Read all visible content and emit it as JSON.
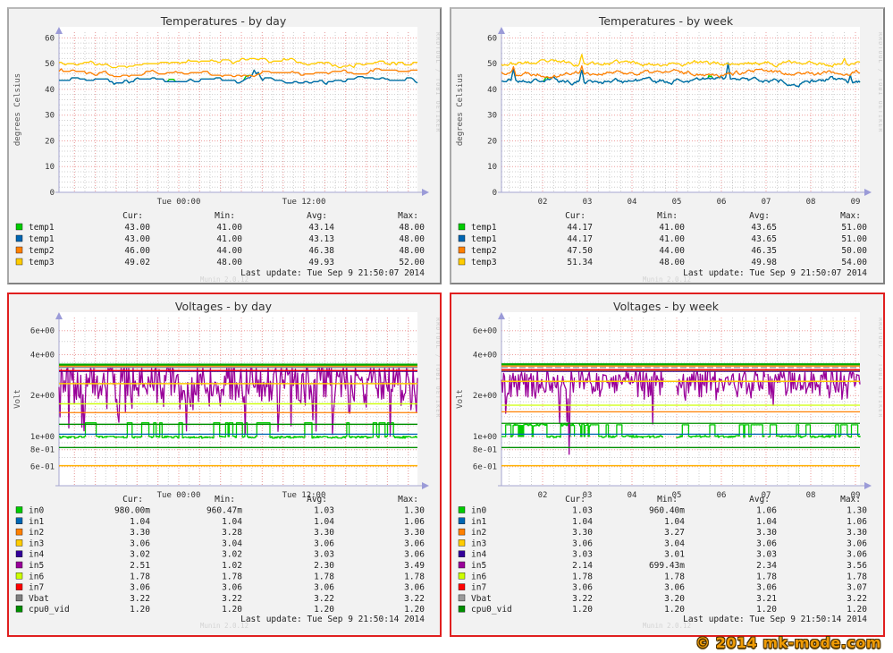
{
  "page": {
    "copyright": "© 2014 mk-mode.com"
  },
  "watermarks": {
    "rrdtool": "RRDTOOL / TOBI OETIKER",
    "munin": "Munin 2.0.12"
  },
  "legend_headers": [
    "Cur:",
    "Min:",
    "Avg:",
    "Max:"
  ],
  "colors": {
    "green": "#00CC00",
    "blue": "#0066B3",
    "orange": "#FF8000",
    "yellow": "#FFCC00",
    "indigo": "#330099",
    "purple": "#990099",
    "chartreuse": "#CCFF00",
    "red": "#FF0000",
    "gray": "#808080",
    "darkgreen": "#008F00",
    "panel_red_border": "#e01f1f"
  },
  "panels": [
    {
      "kind": "temp",
      "title": "Temperatures - by day",
      "ylabel": "degrees Celsius",
      "last_update": "Last update: Tue Sep  9 21:50:07 2014",
      "x_ticks": [
        {
          "label": "Tue 00:00",
          "x": 190
        },
        {
          "label": "Tue 12:00",
          "x": 330
        }
      ],
      "grid": {
        "style": "day"
      },
      "y_ticks": [
        {
          "label": "0",
          "v": 0
        },
        {
          "label": "10",
          "v": 10
        },
        {
          "label": "20",
          "v": 20
        },
        {
          "label": "30",
          "v": 30
        },
        {
          "label": "40",
          "v": 40
        },
        {
          "label": "50",
          "v": 50
        },
        {
          "label": "60",
          "v": 60
        }
      ],
      "chart_data": {
        "type": "line",
        "yscale": "linear",
        "ylim": [
          0,
          60
        ],
        "grid": true,
        "series": [
          {
            "name": "temp1",
            "color": "#00CC00",
            "cur": "43.00",
            "min": "41.00",
            "avg": "43.14",
            "max": "48.00",
            "render": {
              "type": "step",
              "seed": 11,
              "base": 43.6,
              "min": 41,
              "max": 48,
              "cp": 0.3,
              "n": 170,
              "spikes": [
                {
                  "f": 0.545,
                  "v": 47.5
                },
                {
                  "f": 0.558,
                  "v": 46.6
                }
              ],
              "peeks": [
                0.31,
                0.52
              ]
            }
          },
          {
            "name": "temp1",
            "color": "#0066B3",
            "cur": "43.00",
            "min": "41.00",
            "avg": "43.13",
            "max": "48.00",
            "render": {
              "type": "step",
              "seed": 11,
              "base": 43.6,
              "min": 41,
              "max": 48,
              "cp": 0.3,
              "n": 170,
              "spikes": [
                {
                  "f": 0.545,
                  "v": 47.5
                },
                {
                  "f": 0.558,
                  "v": 46.6
                }
              ]
            }
          },
          {
            "name": "temp2",
            "color": "#FF8000",
            "cur": "46.00",
            "min": "44.00",
            "avg": "46.38",
            "max": "48.00",
            "render": {
              "type": "step",
              "seed": 12,
              "base": 46.9,
              "min": 44.5,
              "max": 48,
              "cp": 0.27,
              "n": 170,
              "spikes": [
                {
                  "f": 0.545,
                  "v": 45.0
                }
              ]
            }
          },
          {
            "name": "temp3",
            "color": "#FFCC00",
            "cur": "49.02",
            "min": "48.00",
            "avg": "49.93",
            "max": "52.00",
            "render": {
              "type": "step",
              "seed": 13,
              "base": 50.6,
              "min": 48.5,
              "max": 52,
              "cp": 0.3,
              "n": 170,
              "spikes": [
                {
                  "f": 0.545,
                  "v": 52.0
                }
              ]
            }
          }
        ]
      }
    },
    {
      "kind": "temp",
      "title": "Temperatures - by week",
      "ylabel": "degrees Celsius",
      "last_update": "Last update: Tue Sep  9 21:50:07 2014",
      "x_ticks": [
        {
          "label": "02",
          "x": 102
        },
        {
          "label": "03",
          "x": 152
        },
        {
          "label": "04",
          "x": 202
        },
        {
          "label": "05",
          "x": 252
        },
        {
          "label": "06",
          "x": 302
        },
        {
          "label": "07",
          "x": 352
        },
        {
          "label": "08",
          "x": 402
        },
        {
          "label": "09",
          "x": 452
        }
      ],
      "grid": {
        "style": "week"
      },
      "y_ticks": [
        {
          "label": "0",
          "v": 0
        },
        {
          "label": "10",
          "v": 10
        },
        {
          "label": "20",
          "v": 20
        },
        {
          "label": "30",
          "v": 30
        },
        {
          "label": "40",
          "v": 40
        },
        {
          "label": "50",
          "v": 50
        },
        {
          "label": "60",
          "v": 60
        }
      ],
      "chart_data": {
        "type": "line",
        "yscale": "linear",
        "ylim": [
          0,
          60
        ],
        "grid": true,
        "series": [
          {
            "name": "temp1",
            "color": "#00CC00",
            "cur": "44.17",
            "min": "41.00",
            "avg": "43.65",
            "max": "51.00",
            "render": {
              "type": "wiggle",
              "seed": 21,
              "base": 43.4,
              "min": 41,
              "max": 48,
              "amp": 1.0,
              "n": 300,
              "spikes": [
                {
                  "f": 0.035,
                  "v": 47.8
                },
                {
                  "f": 0.225,
                  "v": 47.4
                },
                {
                  "f": 0.633,
                  "v": 50.3
                },
                {
                  "f": 0.972,
                  "v": 45.6
                }
              ],
              "peeks": [
                0.12,
                0.58
              ]
            }
          },
          {
            "name": "temp1",
            "color": "#0066B3",
            "cur": "44.17",
            "min": "41.00",
            "avg": "43.65",
            "max": "51.00",
            "render": {
              "type": "wiggle",
              "seed": 21,
              "base": 43.4,
              "min": 41,
              "max": 48,
              "amp": 1.0,
              "n": 300,
              "spikes": [
                {
                  "f": 0.035,
                  "v": 47.8
                },
                {
                  "f": 0.225,
                  "v": 47.4
                },
                {
                  "f": 0.633,
                  "v": 50.3
                },
                {
                  "f": 0.972,
                  "v": 45.6
                }
              ]
            }
          },
          {
            "name": "temp2",
            "color": "#FF8000",
            "cur": "47.50",
            "min": "44.00",
            "avg": "46.35",
            "max": "50.00",
            "render": {
              "type": "wiggle",
              "seed": 22,
              "base": 46.5,
              "min": 44.3,
              "max": 49.3,
              "amp": 0.85,
              "n": 300,
              "spikes": [
                {
                  "f": 0.035,
                  "v": 48.8
                },
                {
                  "f": 0.225,
                  "v": 49.2
                }
              ]
            }
          },
          {
            "name": "temp3",
            "color": "#FFCC00",
            "cur": "51.34",
            "min": "48.00",
            "avg": "49.98",
            "max": "54.00",
            "render": {
              "type": "wiggle",
              "seed": 23,
              "base": 50.2,
              "min": 48.2,
              "max": 52.4,
              "amp": 0.8,
              "n": 300,
              "spikes": [
                {
                  "f": 0.225,
                  "v": 53.6
                },
                {
                  "f": 0.955,
                  "v": 52.0
                }
              ]
            }
          }
        ]
      }
    },
    {
      "kind": "volt",
      "title": "Voltages - by day",
      "ylabel": "Volt",
      "last_update": "Last update: Tue Sep  9 21:50:14 2014",
      "x_ticks": [
        {
          "label": "Tue 00:00",
          "x": 190
        },
        {
          "label": "Tue 12:00",
          "x": 330
        }
      ],
      "grid": {
        "style": "day"
      },
      "y_ticks": [
        {
          "label": "6e+00",
          "v": 6
        },
        {
          "label": "4e+00",
          "v": 4
        },
        {
          "label": "2e+00",
          "v": 2
        },
        {
          "label": "1e+00",
          "v": 1
        },
        {
          "label": "8e-01",
          "v": 0.8
        },
        {
          "label": "6e-01",
          "v": 0.6
        }
      ],
      "chart_data": {
        "type": "line",
        "yscale": "log",
        "ylim": [
          0.5,
          7
        ],
        "grid": true,
        "series": [
          {
            "name": "in0",
            "color": "#00CC00",
            "cur": "980.00m",
            "min": "960.47m",
            "avg": "1.03",
            "max": "1.30",
            "render": {
              "type": "pulse",
              "seed": 31,
              "base": 0.99,
              "high": 1.26,
              "prob": 0.065,
              "lenMax": 7,
              "n": 300
            }
          },
          {
            "name": "in1",
            "color": "#0066B3",
            "cur": "1.04",
            "min": "1.04",
            "avg": "1.04",
            "max": "1.06",
            "render": {
              "type": "flat",
              "value": 1.04
            }
          },
          {
            "name": "in2",
            "color": "#FF8000",
            "cur": "3.30",
            "min": "3.28",
            "avg": "3.30",
            "max": "3.30",
            "render": {
              "type": "flat",
              "value": 3.3
            }
          },
          {
            "name": "in3",
            "color": "#FFCC00",
            "cur": "3.06",
            "min": "3.04",
            "avg": "3.06",
            "max": "3.06",
            "render": {
              "type": "flat",
              "value": 3.06
            }
          },
          {
            "name": "in4",
            "color": "#330099",
            "cur": "3.02",
            "min": "3.02",
            "avg": "3.03",
            "max": "3.06",
            "render": {
              "type": "flat",
              "value": 3.015
            }
          },
          {
            "name": "in5",
            "color": "#990099",
            "cur": "2.51",
            "min": "1.02",
            "avg": "2.30",
            "max": "3.49",
            "render": {
              "type": "noise",
              "seed": 32,
              "base": 2.55,
              "amp": 1.15,
              "n": 330,
              "dropProb": 0.045,
              "dropTo": [
                1.0,
                1.7
              ],
              "clamp": [
                0.98,
                3.2
              ],
              "spikeProb": 0.008,
              "spikeTo": 3.42
            }
          },
          {
            "name": "in6",
            "color": "#CCFF00",
            "cur": "1.78",
            "min": "1.78",
            "avg": "1.78",
            "max": "1.78",
            "render": {
              "type": "flat",
              "value": 1.74
            }
          },
          {
            "name": "in7",
            "color": "#FF0000",
            "cur": "3.06",
            "min": "3.06",
            "avg": "3.06",
            "max": "3.06",
            "render": {
              "type": "flat",
              "value": 3.06
            }
          },
          {
            "name": "Vbat",
            "color": "#808080",
            "cur": "3.22",
            "min": "3.22",
            "avg": "3.22",
            "max": "3.22",
            "render": {
              "type": "flat",
              "value": 3.22
            }
          },
          {
            "name": "cpu0_vid",
            "color": "#008F00",
            "cur": "1.20",
            "min": "1.20",
            "avg": "1.20",
            "max": "1.20",
            "render": {
              "type": "flat",
              "value": 1.23
            }
          }
        ],
        "hrules": [
          {
            "color": "#00AA00",
            "v": 3.38,
            "w": 2.2
          },
          {
            "color": "#FFCC00",
            "v": 2.45,
            "w": 1.5
          },
          {
            "color": "#FF8000",
            "v": 1.5,
            "w": 1.3
          },
          {
            "color": "#008F00",
            "v": 0.83,
            "w": 1.3
          },
          {
            "color": "#FFB000",
            "v": 0.61,
            "w": 1.6
          }
        ]
      }
    },
    {
      "kind": "volt",
      "title": "Voltages - by week",
      "ylabel": "Volt",
      "last_update": "Last update: Tue Sep  9 21:50:14 2014",
      "x_ticks": [
        {
          "label": "02",
          "x": 102
        },
        {
          "label": "03",
          "x": 152
        },
        {
          "label": "04",
          "x": 202
        },
        {
          "label": "05",
          "x": 252
        },
        {
          "label": "06",
          "x": 302
        },
        {
          "label": "07",
          "x": 352
        },
        {
          "label": "08",
          "x": 402
        },
        {
          "label": "09",
          "x": 452
        }
      ],
      "grid": {
        "style": "week"
      },
      "y_ticks": [
        {
          "label": "6e+00",
          "v": 6
        },
        {
          "label": "4e+00",
          "v": 4
        },
        {
          "label": "2e+00",
          "v": 2
        },
        {
          "label": "1e+00",
          "v": 1
        },
        {
          "label": "8e-01",
          "v": 0.8
        },
        {
          "label": "6e-01",
          "v": 0.6
        }
      ],
      "chart_data": {
        "type": "line",
        "yscale": "log",
        "ylim": [
          0.5,
          7
        ],
        "grid": true,
        "series": [
          {
            "name": "in0",
            "color": "#00CC00",
            "cur": "1.03",
            "min": "960.40m",
            "avg": "1.06",
            "max": "1.30",
            "render": {
              "type": "pulse",
              "seed": 41,
              "base": 1.0,
              "high": 1.22,
              "prob": 0.1,
              "lenMax": 5,
              "n": 340,
              "plateaus": [
                [
                  0.03,
                  0.125
                ],
                [
                  0.165,
                  0.245
                ]
              ],
              "gaps": [
                [
                  0.205,
                  0.215
                ],
                [
                  0.452,
                  0.485
                ],
                [
                  0.735,
                  0.742
                ]
              ]
            }
          },
          {
            "name": "in1",
            "color": "#0066B3",
            "cur": "1.04",
            "min": "1.04",
            "avg": "1.04",
            "max": "1.06",
            "render": {
              "type": "flat",
              "value": 1.04
            }
          },
          {
            "name": "in2",
            "color": "#FF8000",
            "cur": "3.30",
            "min": "3.27",
            "avg": "3.30",
            "max": "3.30",
            "render": {
              "type": "flat",
              "value": 3.3
            }
          },
          {
            "name": "in3",
            "color": "#FFCC00",
            "cur": "3.06",
            "min": "3.04",
            "avg": "3.06",
            "max": "3.06",
            "render": {
              "type": "flat",
              "value": 3.06
            }
          },
          {
            "name": "in4",
            "color": "#330099",
            "cur": "3.03",
            "min": "3.01",
            "avg": "3.03",
            "max": "3.06",
            "render": {
              "type": "flat",
              "value": 3.015
            }
          },
          {
            "name": "in5",
            "color": "#990099",
            "cur": "2.14",
            "min": "699.43m",
            "avg": "2.34",
            "max": "3.56",
            "render": {
              "type": "noise",
              "seed": 42,
              "base": 2.5,
              "amp": 0.75,
              "n": 340,
              "dropProb": 0.02,
              "dropTo": [
                1.2,
                1.8
              ],
              "clamp": [
                0.7,
                3.08
              ],
              "spikeProb": 0.006,
              "spikeTo": 3.25,
              "scripted": [
                {
                  "f": 0.163,
                  "v": 1.25
                },
                {
                  "f": 0.19,
                  "v": 0.74
                }
              ],
              "gaps": [
                [
                  0.205,
                  0.215
                ],
                [
                  0.452,
                  0.485
                ],
                [
                  0.735,
                  0.742
                ]
              ]
            }
          },
          {
            "name": "in6",
            "color": "#CCFF00",
            "cur": "1.78",
            "min": "1.78",
            "avg": "1.78",
            "max": "1.78",
            "render": {
              "type": "flat",
              "value": 1.7
            }
          },
          {
            "name": "in7",
            "color": "#FF0000",
            "cur": "3.06",
            "min": "3.06",
            "avg": "3.06",
            "max": "3.07",
            "render": {
              "type": "flat",
              "value": 3.1
            }
          },
          {
            "name": "Vbat",
            "color": "#9a9a9a",
            "cur": "3.22",
            "min": "3.20",
            "avg": "3.21",
            "max": "3.22",
            "render": {
              "type": "flat",
              "value": 3.22,
              "dash": "7,3"
            }
          },
          {
            "name": "cpu0_vid",
            "color": "#008F00",
            "cur": "1.20",
            "min": "1.20",
            "avg": "1.20",
            "max": "1.20",
            "render": {
              "type": "flat",
              "value": 1.25
            }
          }
        ],
        "hrules": [
          {
            "color": "#00AA00",
            "v": 3.4,
            "w": 2.2
          },
          {
            "color": "#FFCC00",
            "v": 2.55,
            "w": 1.5
          },
          {
            "color": "#FF8000",
            "v": 1.52,
            "w": 1.3
          },
          {
            "color": "#008F00",
            "v": 0.83,
            "w": 1.3
          },
          {
            "color": "#FFB000",
            "v": 0.61,
            "w": 1.6
          }
        ]
      }
    }
  ]
}
